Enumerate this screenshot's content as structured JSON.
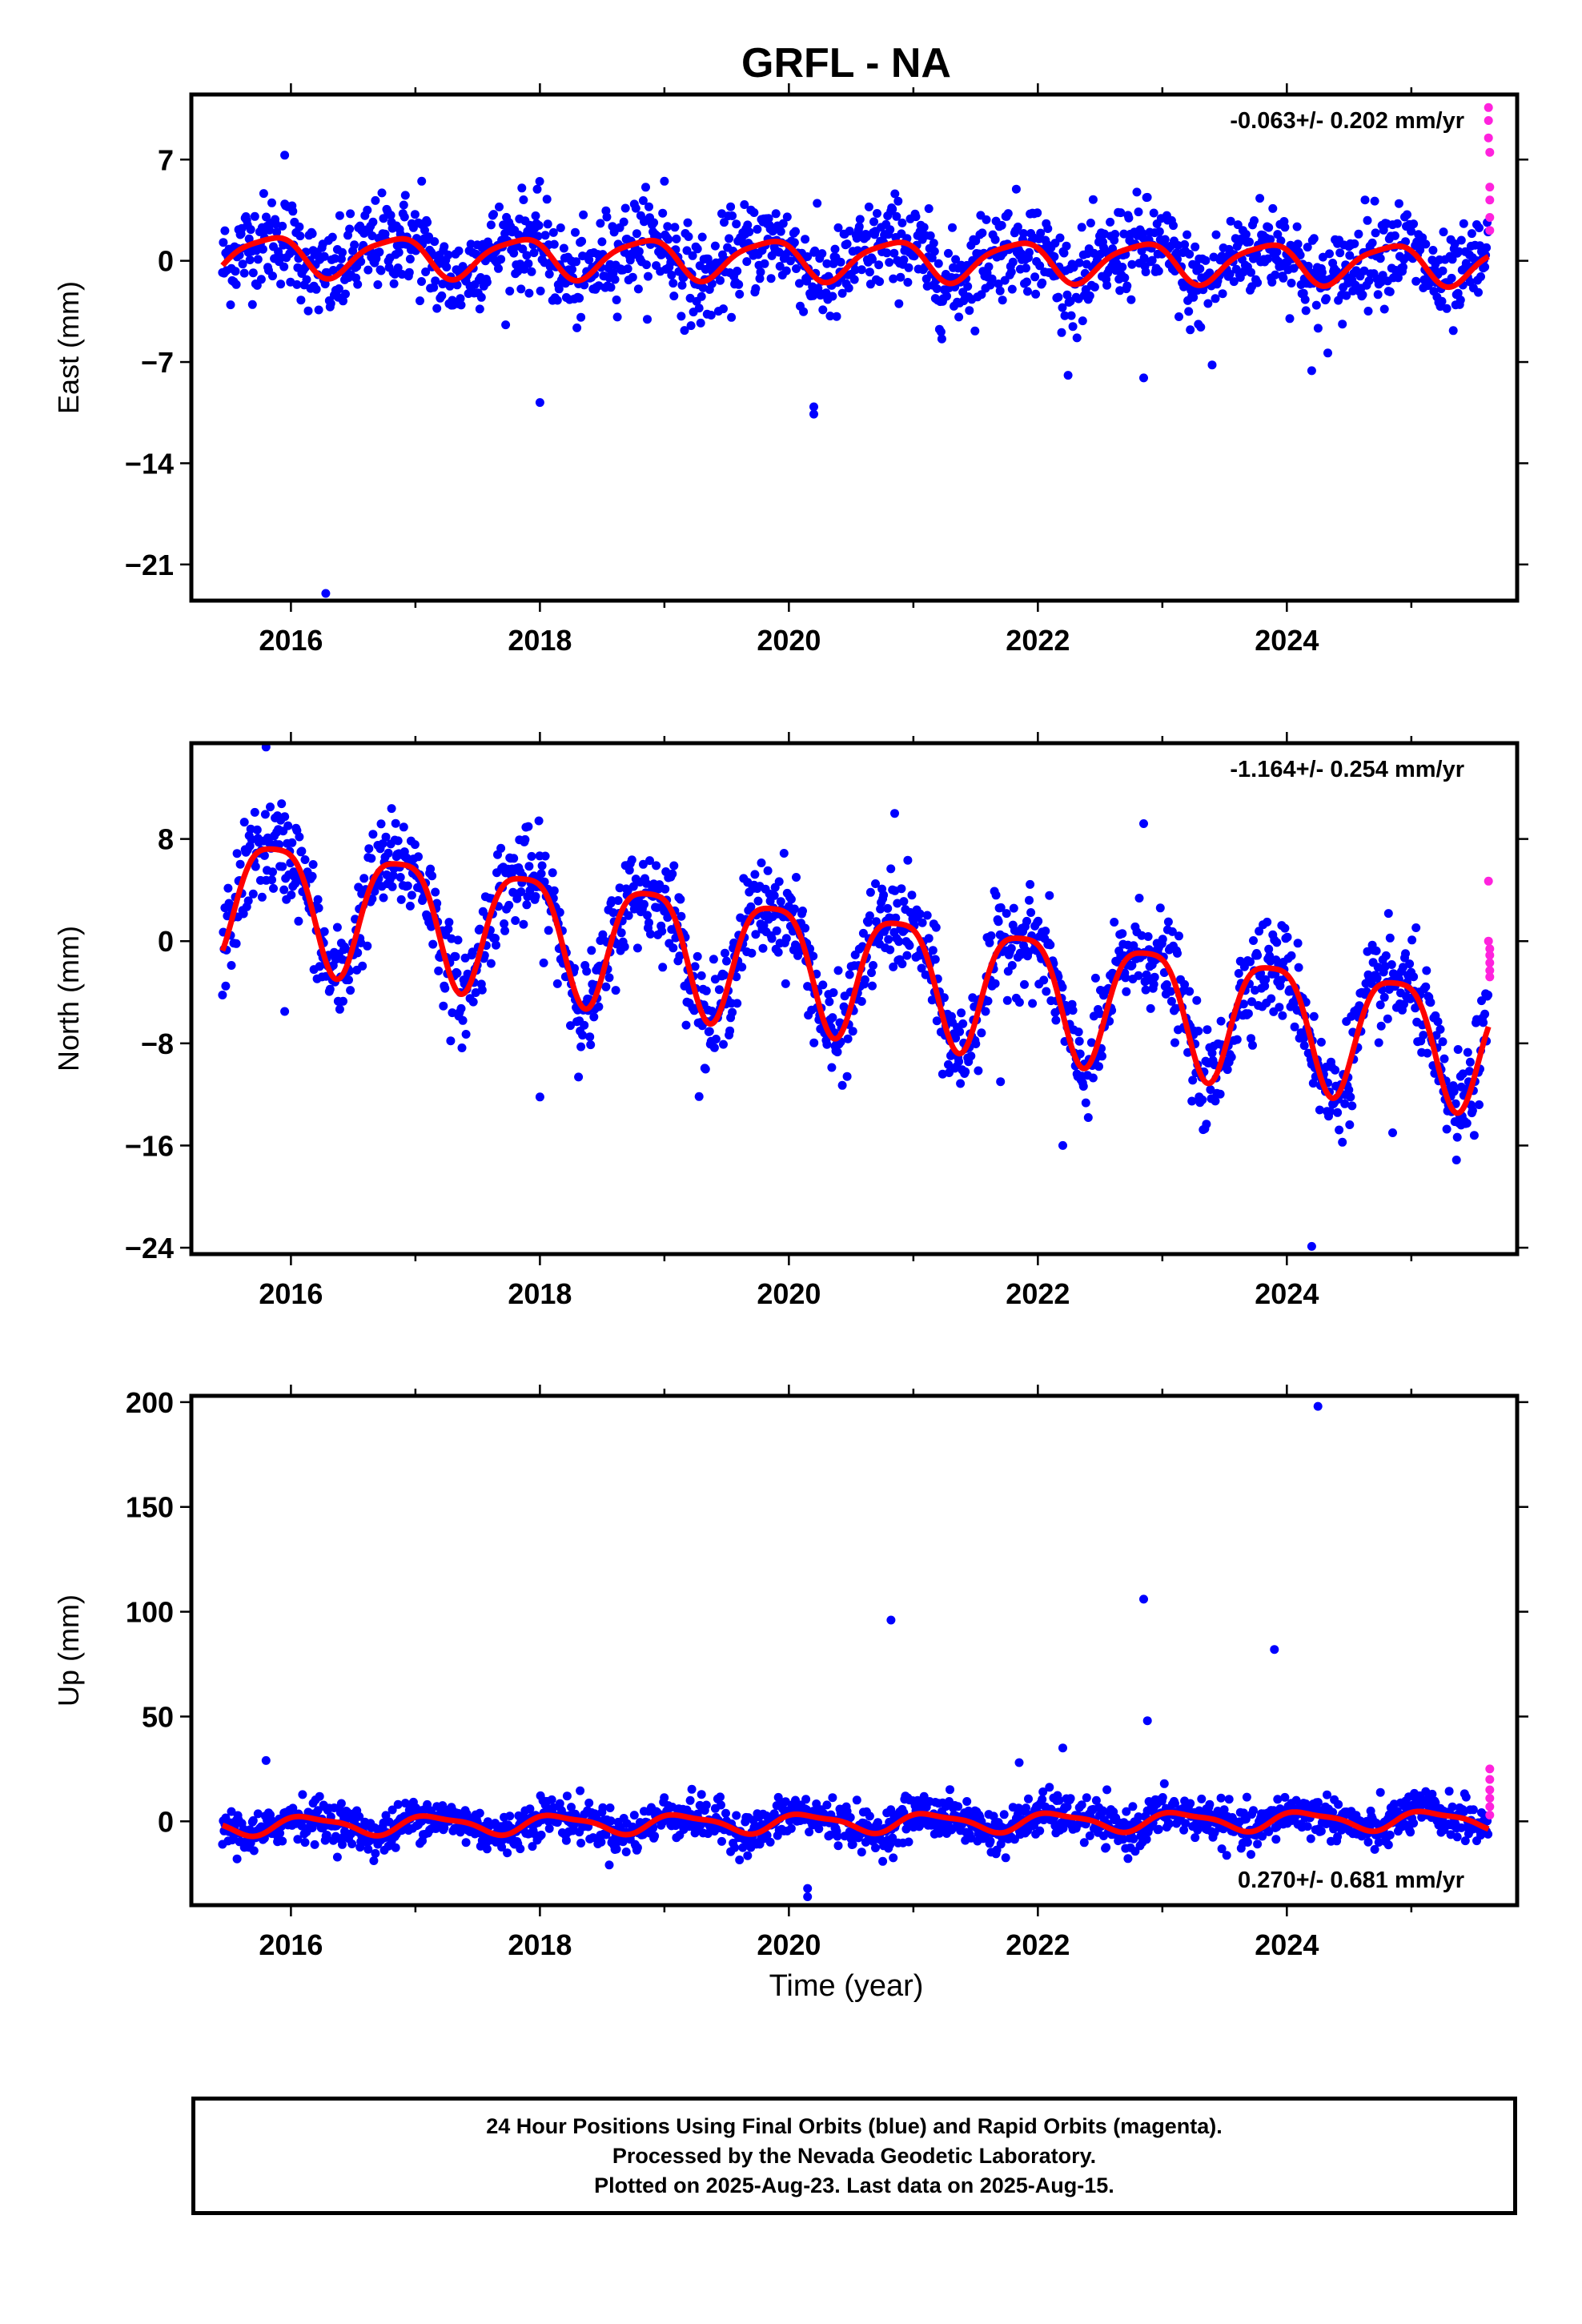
{
  "title": "GRFL - NA",
  "xlabel": "Time (year)",
  "x_tick_labels": [
    "2016",
    "2018",
    "2020",
    "2022",
    "2024"
  ],
  "colors": {
    "final_orbits": "#0000ff",
    "rapid_orbits": "#ff22dd",
    "model_fit": "#ff0000"
  },
  "footer": {
    "line1": "24 Hour Positions Using Final Orbits (blue) and Rapid Orbits (magenta).",
    "line2": "Processed by the Nevada Geodetic Laboratory.",
    "line3": "Plotted on 2025-Aug-23. Last data on 2025-Aug-15."
  },
  "chart_data": [
    {
      "type": "scatter",
      "component": "east",
      "ylabel": "East (mm)",
      "rate_label": "-0.063+/- 0.202 mm/yr",
      "rate_label_position": "top-right",
      "xlim": [
        2015.2,
        2025.85
      ],
      "ylim": [
        -23.5,
        11.5
      ],
      "yticks": [
        7,
        0,
        -7,
        -14,
        -21
      ],
      "ytick_labels": [
        "7",
        "0",
        "−7",
        "−14",
        "−21"
      ],
      "x_start": 2015.45,
      "x_end": 2025.62,
      "step_years": 0.0065,
      "model": {
        "offset": 0.1,
        "trend": -0.063,
        "trend_ref": 2020.5,
        "amp1": 1.35,
        "phase1": 2.7,
        "amp2": 0.3,
        "phase2": 1.3
      },
      "noise_sd": 1.6,
      "outliers": [
        [
          2016.28,
          -23.0
        ],
        [
          2018.0,
          -9.8
        ],
        [
          2020.2,
          -10.1
        ],
        [
          2020.2,
          -10.6
        ],
        [
          2015.95,
          7.3
        ],
        [
          2017.05,
          5.5
        ],
        [
          2019.0,
          5.5
        ],
        [
          2022.85,
          -8.1
        ],
        [
          2023.4,
          -7.2
        ],
        [
          2024.2,
          -7.6
        ]
      ],
      "rapid": [
        [
          2025.62,
          10.6
        ],
        [
          2025.62,
          9.7
        ],
        [
          2025.62,
          8.5
        ],
        [
          2025.63,
          7.5
        ],
        [
          2025.63,
          5.1
        ],
        [
          2025.63,
          4.2
        ],
        [
          2025.63,
          3.0
        ],
        [
          2025.63,
          2.1
        ]
      ]
    },
    {
      "type": "scatter",
      "component": "north",
      "ylabel": "North (mm)",
      "rate_label": "-1.164+/- 0.254 mm/yr",
      "rate_label_position": "top-right",
      "xlim": [
        2015.2,
        2025.85
      ],
      "ylim": [
        -24.5,
        15.5
      ],
      "yticks": [
        8,
        0,
        -8,
        -16,
        -24
      ],
      "ytick_labels": [
        "8",
        "0",
        "−8",
        "−16",
        "−24"
      ],
      "x_start": 2015.45,
      "x_end": 2025.62,
      "step_years": 0.0065,
      "model": {
        "offset": -1.9,
        "trend": -1.164,
        "trend_ref": 2020.5,
        "amp1": 4.8,
        "phase1": 2.4,
        "amp2": 1.1,
        "phase2": 0.1
      },
      "noise_sd": 1.9,
      "outliers": [
        [
          2015.8,
          15.2
        ],
        [
          2015.95,
          -5.5
        ],
        [
          2018.0,
          -12.2
        ],
        [
          2016.25,
          -2.8
        ],
        [
          2020.85,
          10.0
        ],
        [
          2021.7,
          -11.0
        ],
        [
          2022.2,
          -16.0
        ],
        [
          2022.85,
          9.2
        ],
        [
          2024.2,
          -23.9
        ],
        [
          2024.85,
          -15.0
        ],
        [
          2025.4,
          -14.4
        ]
      ],
      "rapid": [
        [
          2025.62,
          4.7
        ],
        [
          2025.62,
          0.0
        ],
        [
          2025.63,
          -0.6
        ],
        [
          2025.63,
          -1.1
        ],
        [
          2025.63,
          -1.7
        ],
        [
          2025.63,
          -2.3
        ],
        [
          2025.63,
          -2.8
        ]
      ]
    },
    {
      "type": "scatter",
      "component": "up",
      "ylabel": "Up (mm)",
      "rate_label": "0.270+/- 0.681 mm/yr",
      "rate_label_position": "bottom-right",
      "xlim": [
        2015.2,
        2025.85
      ],
      "ylim": [
        -40,
        203
      ],
      "yticks": [
        200,
        150,
        100,
        50,
        0
      ],
      "ytick_labels": [
        "200",
        "150",
        "100",
        "50",
        "0"
      ],
      "x_start": 2015.45,
      "x_end": 2025.62,
      "step_years": 0.0065,
      "model": {
        "offset": -0.6,
        "trend": 0.27,
        "trend_ref": 2020.5,
        "amp1": 4.2,
        "phase1": 0.6,
        "amp2": 1.3,
        "phase2": 1.9
      },
      "noise_sd": 5.0,
      "outliers": [
        [
          2020.82,
          96.0
        ],
        [
          2022.85,
          106.0
        ],
        [
          2022.88,
          48.0
        ],
        [
          2023.9,
          82.0
        ],
        [
          2024.25,
          198.0
        ],
        [
          2021.85,
          28.0
        ],
        [
          2022.2,
          35.0
        ],
        [
          2020.15,
          -32.0
        ],
        [
          2020.15,
          -36.0
        ],
        [
          2015.8,
          29.0
        ]
      ],
      "rapid": [
        [
          2025.63,
          25.0
        ],
        [
          2025.63,
          20.0
        ],
        [
          2025.63,
          15.0
        ],
        [
          2025.63,
          11.0
        ],
        [
          2025.63,
          7.0
        ],
        [
          2025.63,
          3.0
        ]
      ]
    }
  ]
}
